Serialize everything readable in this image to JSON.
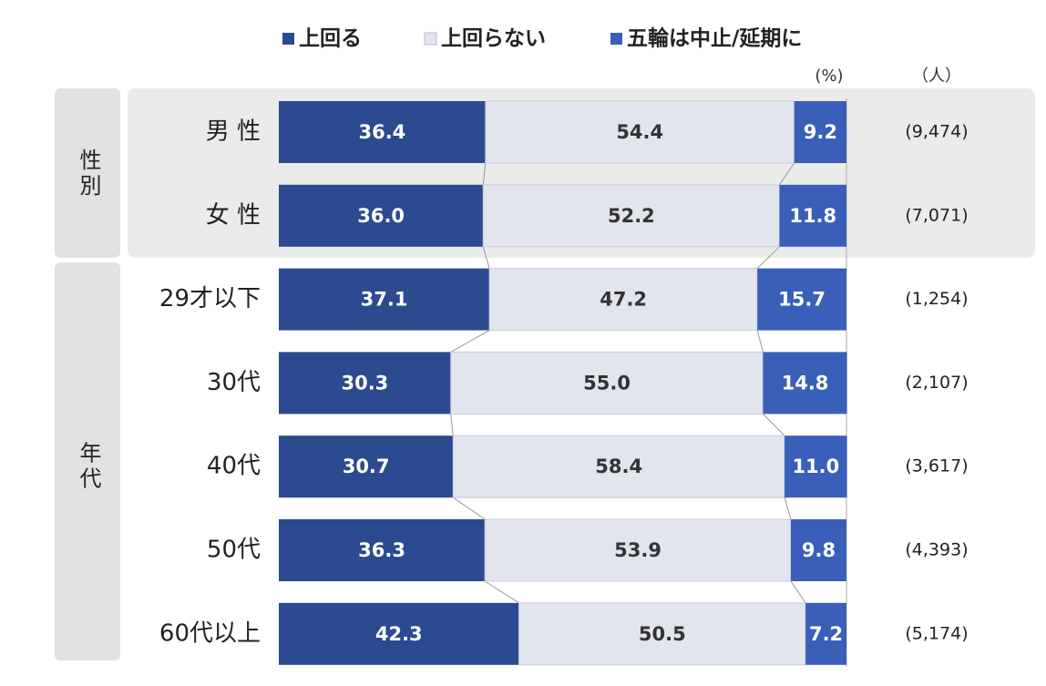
{
  "chart_data": {
    "type": "stacked_bar_horizontal",
    "categories": [
      "男 性",
      "女 性",
      "29才以下",
      "30代",
      "40代",
      "50代",
      "60代以上"
    ],
    "category_groups": [
      "性別",
      "性別",
      "年代",
      "年代",
      "年代",
      "年代",
      "年代"
    ],
    "series": [
      {
        "name": "上回る",
        "color": "#2c4a90",
        "values": [
          36.4,
          36.0,
          37.1,
          30.3,
          30.7,
          36.3,
          42.3
        ],
        "value_labels": [
          "36.4",
          "36.0",
          "37.1",
          "30.3",
          "30.7",
          "36.3",
          "42.3"
        ]
      },
      {
        "name": "上回らない",
        "color": "#e2e4ee",
        "values": [
          54.4,
          52.2,
          47.2,
          55.0,
          58.4,
          53.9,
          50.5
        ],
        "value_labels": [
          "54.4",
          "52.2",
          "47.2",
          "55.0",
          "58.4",
          "53.9",
          "50.5"
        ]
      },
      {
        "name": "五輪は中止/延期に",
        "color": "#3a5fb8",
        "values": [
          9.2,
          11.8,
          15.7,
          14.8,
          11.0,
          9.8,
          7.2
        ],
        "value_labels": [
          "9.2",
          "11.8",
          "15.7",
          "14.8",
          "11.0",
          "9.8",
          "7.2"
        ]
      }
    ],
    "sample_sizes": [
      "(9,474)",
      "(7,071)",
      "(1,254)",
      "(2,107)",
      "(3,617)",
      "(4,393)",
      "(5,174)"
    ],
    "value_unit": "(%)",
    "sample_unit": "（人）",
    "xlim": [
      0,
      100
    ]
  }
}
